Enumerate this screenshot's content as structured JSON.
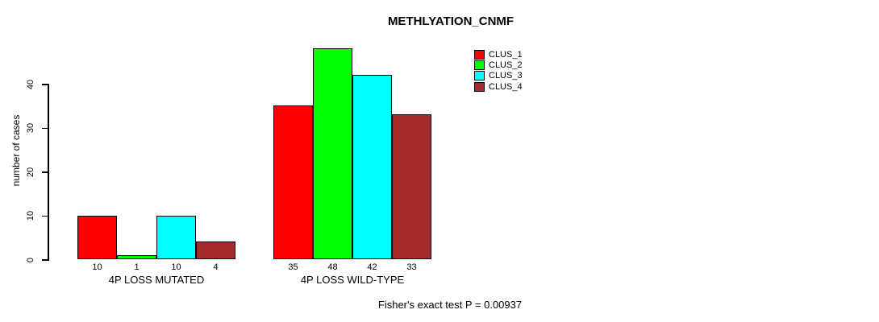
{
  "title": "METHLYATION_CNMF",
  "footer": "Fisher's exact test P = 0.00937",
  "colors": {
    "clus_1": "#FF0000",
    "clus_2": "#00FF00",
    "clus_3": "#00FFFF",
    "clus_4": "#A52A2A",
    "axis": "#000000",
    "background": "#FFFFFF"
  },
  "chart_data": {
    "type": "bar",
    "title": "METHLYATION_CNMF",
    "xlabel": "",
    "ylabel": "number of cases",
    "ylim": [
      0,
      48
    ],
    "yticks": [
      0,
      10,
      20,
      30,
      40
    ],
    "grid": false,
    "legend_position": "top-right",
    "categories": [
      "4P LOSS MUTATED",
      "4P LOSS WILD-TYPE"
    ],
    "series": [
      {
        "name": "CLUS_1",
        "color": "#FF0000",
        "values": [
          10,
          35
        ]
      },
      {
        "name": "CLUS_2",
        "color": "#00FF00",
        "values": [
          1,
          48
        ]
      },
      {
        "name": "CLUS_3",
        "color": "#00FFFF",
        "values": [
          10,
          42
        ]
      },
      {
        "name": "CLUS_4",
        "color": "#A52A2A",
        "values": [
          4,
          33
        ]
      }
    ],
    "bar_value_labels": [
      [
        "10",
        "1",
        "10",
        "4"
      ],
      [
        "35",
        "48",
        "42",
        "33"
      ]
    ],
    "annotation": "Fisher's exact test P = 0.00937"
  }
}
